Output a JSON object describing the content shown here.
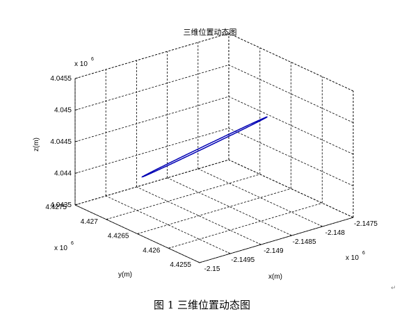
{
  "chart_data": {
    "type": "line",
    "title": "三维位置动态图",
    "xlabel": "x(m)",
    "ylabel": "y(m)",
    "zlabel": "z(m)",
    "x_multiplier": "x 10",
    "x_multiplier_exp": "6",
    "y_multiplier": "x 10",
    "y_multiplier_exp": "6",
    "z_multiplier": "x 10",
    "z_multiplier_exp": "6",
    "xlim": [
      -2.15,
      -2.1475
    ],
    "ylim": [
      4.4255,
      4.4275
    ],
    "zlim": [
      4.0435,
      4.0455
    ],
    "x_ticks": [
      -2.15,
      -2.1495,
      -2.149,
      -2.1485,
      -2.148,
      -2.1475
    ],
    "x_tick_labels": [
      "-2.15",
      "-2.1495",
      "-2.149",
      "-2.1485",
      "-2.148",
      "-2.1475"
    ],
    "y_ticks": [
      4.4255,
      4.426,
      4.4265,
      4.427,
      4.4275
    ],
    "y_tick_labels": [
      "4.4255",
      "4.426",
      "4.4265",
      "4.427",
      "4.4275"
    ],
    "z_ticks": [
      4.0435,
      4.044,
      4.0445,
      4.045,
      4.0455
    ],
    "z_tick_labels": [
      "4.0435",
      "4.044",
      "4.0445",
      "4.045",
      "4.0455"
    ],
    "grid": true,
    "series": [
      {
        "color": "#0000b4",
        "orbit": {
          "center": [
            -2.14875,
            4.42665,
            4.04445
          ],
          "major_axis": [
            0.00056,
            -0.00045,
            0.00052
          ],
          "minor_axis": [
            3e-05,
            4e-05,
            -1.5e-05
          ]
        }
      }
    ]
  },
  "caption": "图 1  三维位置动态图"
}
